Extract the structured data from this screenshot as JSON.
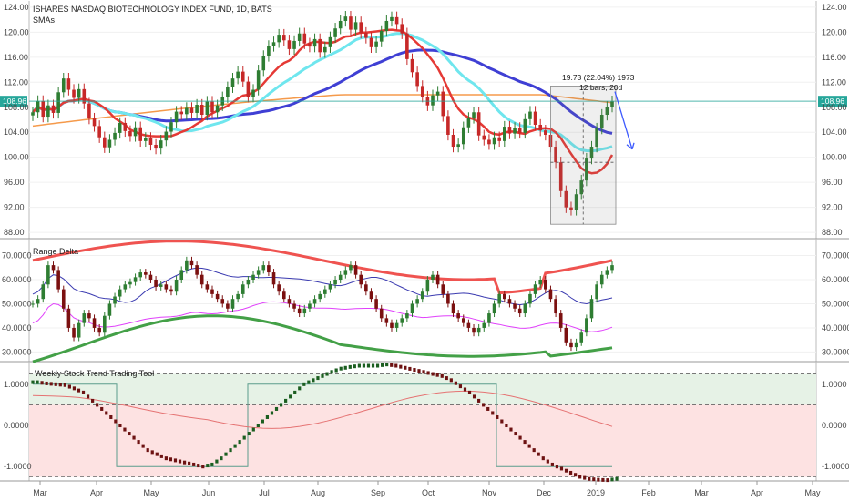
{
  "chart_data": [
    {
      "type": "candlestick",
      "title": "ISHARES NASDAQ BIOTECHNOLOGY INDEX FUND, 1D, BATS",
      "indicator_label": "SMAs",
      "ylim": [
        87,
        125
      ],
      "yticks": [
        "124.00",
        "120.00",
        "116.00",
        "112.00",
        "108.00",
        "104.00",
        "100.00",
        "96.00",
        "92.00",
        "88.00"
      ],
      "last_price": "108.96",
      "measure_label_1": "19.73 (22.04%) 1973",
      "measure_label_2": "12 bars, 20d",
      "colors": {
        "up": "#2e7d32",
        "down": "#c62828",
        "sma_fast": "#e53935",
        "sma_cyan": "#6fe6ee",
        "sma_blue": "#3f3fd4",
        "sma_orange": "#f59a4b",
        "price_line": "#26a69a",
        "arrow": "#3d5afe"
      },
      "close_series": [
        107.2,
        109.0,
        106.5,
        108.3,
        107.1,
        110.4,
        112.6,
        110.8,
        109.5,
        110.9,
        108.6,
        106.2,
        105.0,
        103.2,
        101.6,
        102.8,
        103.9,
        105.5,
        104.2,
        103.4,
        104.8,
        102.6,
        103.1,
        102.0,
        101.4,
        102.7,
        104.1,
        105.6,
        107.3,
        106.9,
        107.9,
        107.1,
        108.4,
        106.8,
        108.9,
        107.2,
        108.3,
        109.6,
        111.2,
        112.6,
        113.7,
        112.1,
        109.7,
        110.8,
        113.9,
        116.2,
        117.8,
        118.4,
        119.6,
        118.7,
        117.3,
        118.6,
        119.8,
        118.2,
        117.7,
        118.9,
        116.8,
        117.6,
        119.2,
        120.6,
        121.8,
        122.5,
        120.4,
        121.6,
        119.9,
        119.1,
        117.6,
        118.5,
        120.2,
        121.8,
        122.4,
        121.3,
        119.8,
        115.7,
        113.6,
        111.4,
        109.7,
        108.3,
        109.9,
        110.5,
        106.6,
        103.6,
        101.7,
        102.1,
        104.8,
        106.3,
        107.2,
        103.5,
        102.8,
        102.1,
        103.2,
        102.6,
        104.9,
        103.8,
        104.7,
        103.9,
        106.1,
        107.3,
        105.2,
        104.3,
        103.6,
        101.7,
        99.2,
        94.6,
        92.0,
        91.6,
        94.1,
        96.3,
        99.8,
        101.7,
        104.6,
        106.8,
        108.1,
        108.96
      ]
    },
    {
      "type": "line",
      "title": "Range Delta",
      "ylim": [
        26,
        77
      ],
      "yticks": [
        "70.0000",
        "60.0000",
        "50.0000",
        "40.0000",
        "30.0000"
      ],
      "colors": {
        "upper": "#ef5350",
        "mid": "#3a3ab0",
        "lower": "#43a047",
        "magenta": "#e040fb",
        "up": "#2e7d32",
        "down": "#7b1010"
      },
      "osc_series": [
        50,
        52,
        58,
        66,
        64,
        56,
        48,
        40,
        36,
        42,
        46,
        44,
        40,
        38,
        45,
        50,
        53,
        56,
        58,
        59,
        61,
        63,
        62,
        60,
        57,
        58,
        56,
        55,
        60,
        64,
        68,
        66,
        62,
        58,
        56,
        54,
        52,
        50,
        48,
        52,
        54,
        58,
        60,
        62,
        64,
        66,
        63,
        58,
        55,
        52,
        50,
        48,
        46,
        48,
        50,
        52,
        54,
        56,
        58,
        60,
        62,
        64,
        66,
        62,
        58,
        55,
        52,
        48,
        44,
        42,
        40,
        42,
        44,
        46,
        50,
        52,
        55,
        60,
        62,
        58,
        54,
        50,
        46,
        44,
        42,
        40,
        38,
        40,
        42,
        46,
        50,
        54,
        52,
        50,
        48,
        46,
        50,
        54,
        58,
        60,
        56,
        52,
        46,
        40,
        34,
        32,
        34,
        38,
        44,
        52,
        58,
        62,
        64,
        66
      ]
    },
    {
      "type": "line",
      "title": "Weekly Stock Trend Trading Tool",
      "ylim": [
        -1.35,
        1.55
      ],
      "yticks": [
        "1.0000",
        "0.0000",
        "-1.0000"
      ],
      "colors": {
        "up": "#1b5e20",
        "down": "#6d1212",
        "zone_top": "#e6f2e6",
        "zone_bottom": "#fde2e2",
        "signal": "#5b9c8c",
        "slow": "#e57373"
      },
      "trend_series": [
        1.05,
        1.02,
        1.0,
        0.98,
        0.9,
        0.8,
        0.6,
        0.4,
        0.2,
        0.0,
        -0.2,
        -0.4,
        -0.6,
        -0.7,
        -0.8,
        -0.85,
        -0.9,
        -0.95,
        -1.0,
        -0.95,
        -0.8,
        -0.6,
        -0.4,
        -0.2,
        0.0,
        0.2,
        0.4,
        0.6,
        0.8,
        1.0,
        1.1,
        1.2,
        1.3,
        1.38,
        1.42,
        1.45,
        1.45,
        1.45,
        1.48,
        1.45,
        1.4,
        1.35,
        1.3,
        1.25,
        1.2,
        1.1,
        0.95,
        0.8,
        0.6,
        0.4,
        0.2,
        0.0,
        -0.2,
        -0.4,
        -0.6,
        -0.8,
        -0.95,
        -1.05,
        -1.15,
        -1.25,
        -1.3,
        -1.32,
        -1.33,
        -1.3
      ]
    }
  ],
  "x_axis": {
    "labels": [
      "Mar",
      "Apr",
      "May",
      "Jun",
      "Jul",
      "Aug",
      "Sep",
      "Oct",
      "Nov",
      "Dec",
      "2019",
      "Feb",
      "Mar",
      "Apr",
      "May"
    ]
  }
}
